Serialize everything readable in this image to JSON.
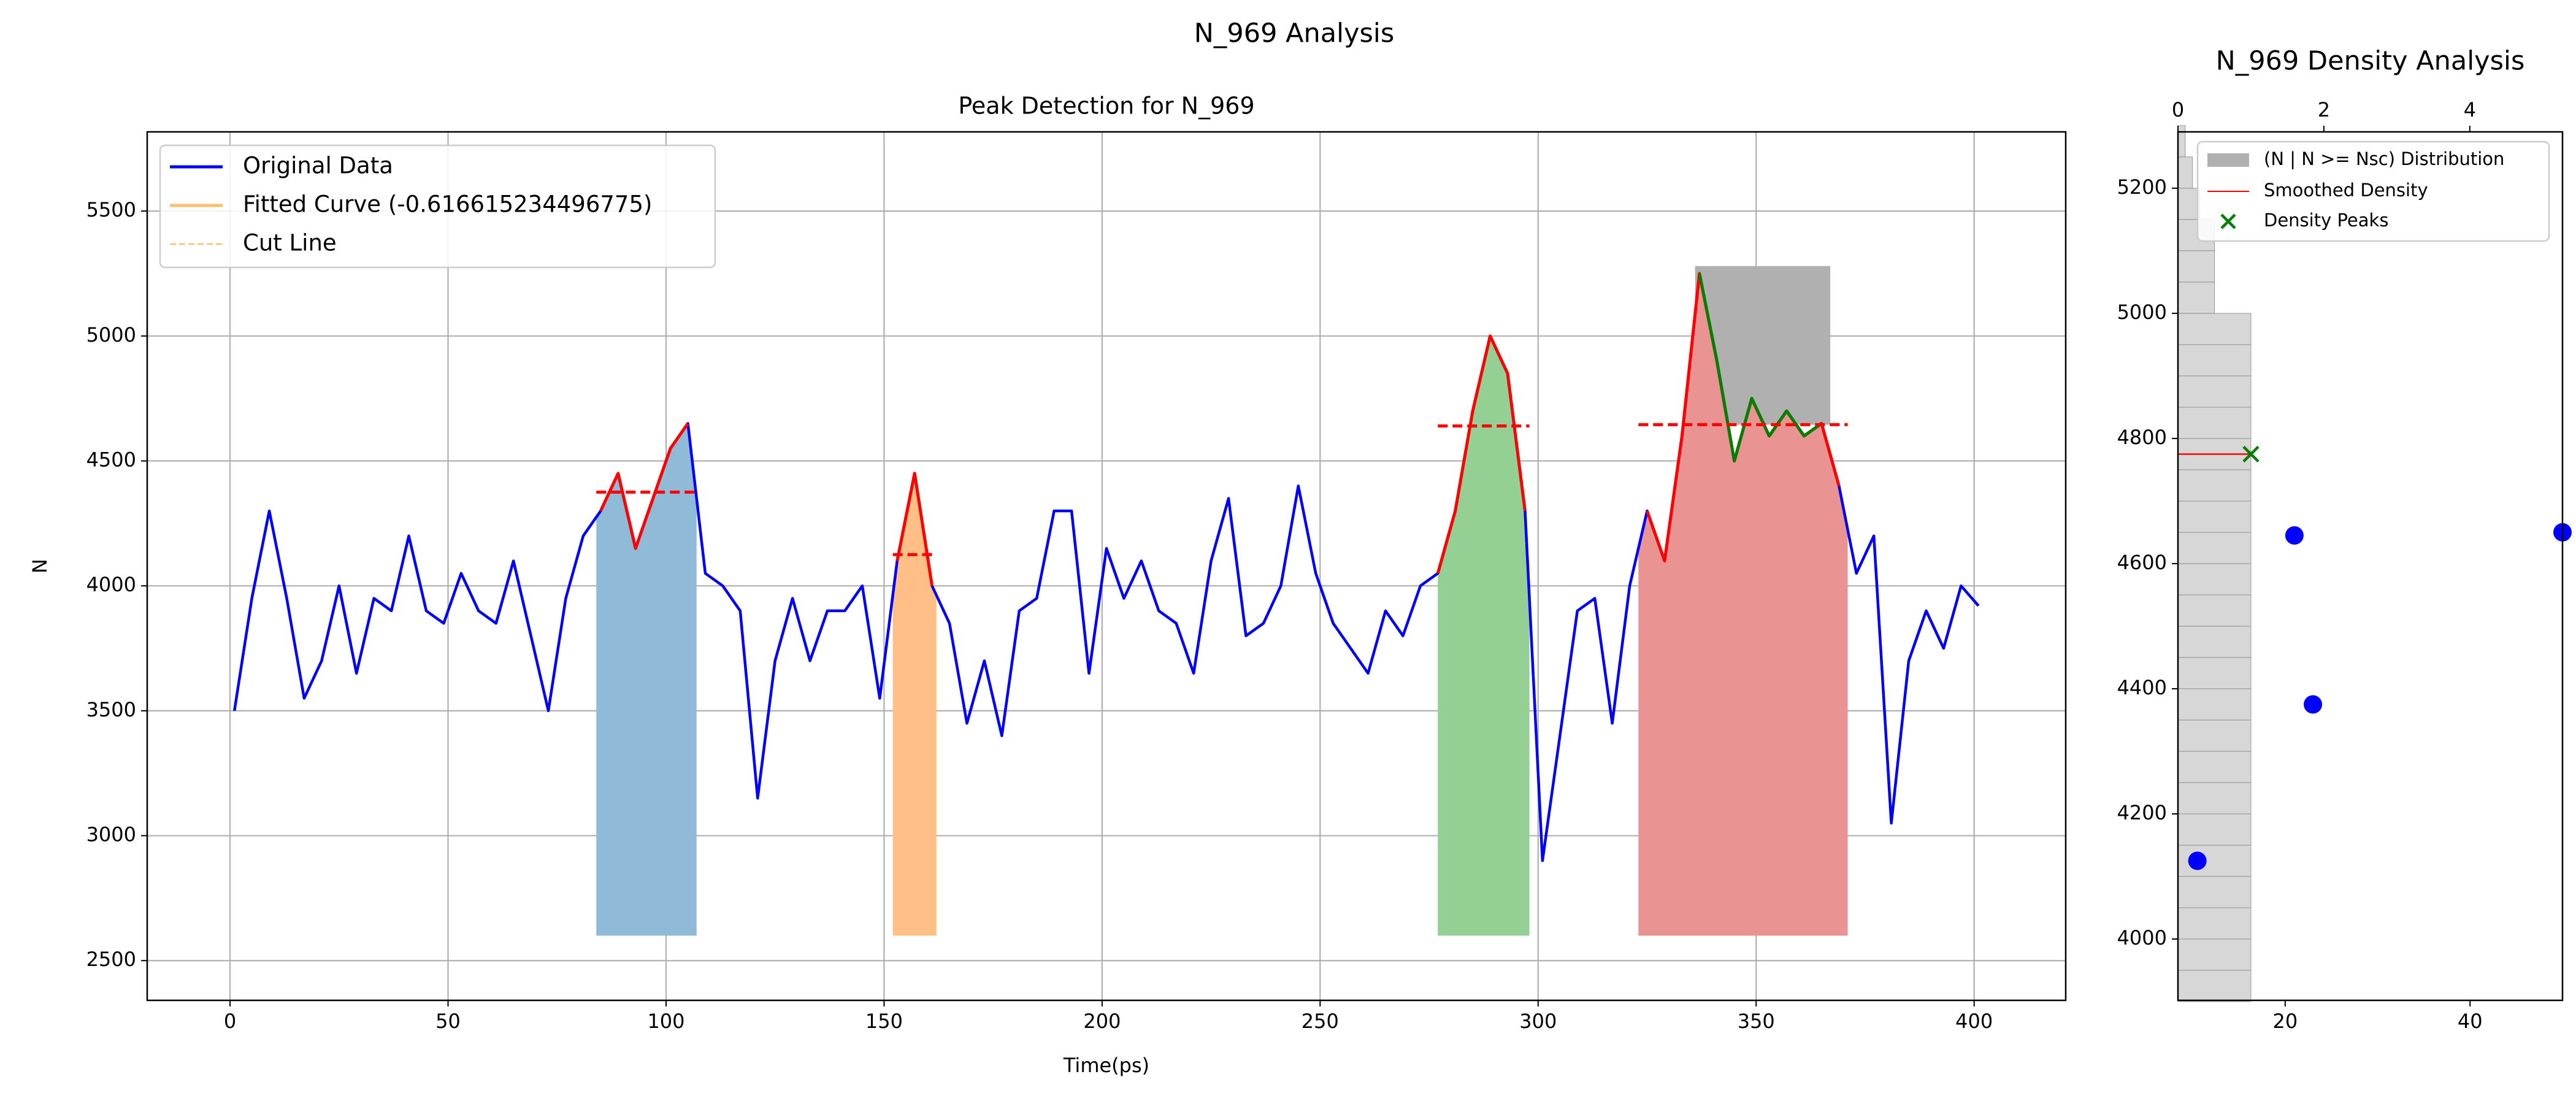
{
  "title": "N_969 Analysis",
  "chart_data": [
    {
      "type": "line",
      "title": "Peak Detection for N_969",
      "x_label": "Time(ps)",
      "y_label": "N",
      "xlim": [
        -19,
        421
      ],
      "xticks": [
        0,
        50,
        100,
        150,
        200,
        250,
        300,
        350,
        400
      ],
      "ylim": [
        2341,
        5817
      ],
      "yticks": [
        2500,
        3000,
        3500,
        4000,
        4500,
        5000,
        5500
      ],
      "grid": true,
      "legend": "upper left",
      "x": [
        1,
        5,
        9,
        13,
        17,
        21,
        25,
        29,
        33,
        37,
        41,
        45,
        49,
        53,
        57,
        61,
        65,
        69,
        73,
        77,
        81,
        85,
        89,
        93,
        97,
        101,
        105,
        109,
        113,
        117,
        121,
        125,
        129,
        133,
        137,
        141,
        145,
        149,
        153,
        157,
        161,
        165,
        169,
        173,
        177,
        181,
        185,
        189,
        193,
        197,
        201,
        205,
        209,
        213,
        217,
        221,
        225,
        229,
        233,
        237,
        241,
        245,
        249,
        253,
        257,
        261,
        265,
        269,
        273,
        277,
        281,
        285,
        289,
        293,
        297,
        301,
        305,
        309,
        313,
        317,
        321,
        325,
        329,
        333,
        337,
        341,
        345,
        349,
        353,
        357,
        361,
        365,
        369,
        373,
        377,
        381,
        385,
        389,
        393,
        397,
        401
      ],
      "series": [
        {
          "name": "Original Data",
          "color": "#0000ff",
          "values": [
            3500,
            3950,
            4300,
            3950,
            3550,
            3700,
            4000,
            3650,
            3950,
            3900,
            4200,
            3900,
            3850,
            4050,
            3900,
            3850,
            4100,
            3800,
            3500,
            3950,
            4200,
            4300,
            4450,
            4150,
            4350,
            4550,
            4650,
            4050,
            4000,
            3900,
            3150,
            3700,
            3950,
            3700,
            3900,
            3900,
            4000,
            3550,
            4100,
            4450,
            4000,
            3850,
            3450,
            3700,
            3400,
            3900,
            3950,
            4300,
            4300,
            3650,
            4150,
            3950,
            4100,
            3900,
            3850,
            3650,
            4100,
            4350,
            3800,
            3850,
            4000,
            4400,
            4050,
            3850,
            3750,
            3650,
            3900,
            3800,
            4000,
            4050,
            4300,
            4700,
            5000,
            4850,
            4300,
            2900,
            3400,
            3900,
            3950,
            3450,
            4000,
            4300,
            4100,
            4600,
            5250,
            4900,
            4500,
            4750,
            4600,
            4700,
            4600,
            4650,
            4400,
            4050,
            4200,
            3050,
            3700,
            3900,
            3750,
            4000,
            3920
          ]
        }
      ],
      "legend_items": [
        {
          "label": "Original Data",
          "color": "#0000ff",
          "dashed": false
        },
        {
          "label": "Fitted Curve (-0.616615234496775)",
          "color": "#ffbf66",
          "dashed": false
        },
        {
          "label": "Cut Line",
          "color": "#ffbf66",
          "dashed": true
        }
      ],
      "peak_line_color": "#ff0000",
      "fill_base": 2600,
      "peaks": [
        {
          "start": 84,
          "end": 107,
          "cut": 4375,
          "color": "#8fbbd9"
        },
        {
          "start": 152,
          "end": 162,
          "cut": 4125,
          "color": "#ffbf86"
        },
        {
          "start": 277,
          "end": 298,
          "cut": 4640,
          "color": "#94cf94"
        },
        {
          "start": 323,
          "end": 371,
          "cut": 4645,
          "color": "#ea9393"
        }
      ],
      "box": {
        "x": [
          336,
          367
        ],
        "y": [
          4645,
          5280
        ],
        "color": "#b0b0b0",
        "line_color": "#008000"
      }
    },
    {
      "type": "density",
      "title": "N_969 Density Analysis",
      "xlim": [
        8.4,
        50
      ],
      "xticks": [
        20,
        40
      ],
      "x2lim": [
        0,
        5.27
      ],
      "x2ticks": [
        0,
        2,
        4
      ],
      "ylim": [
        3902,
        5290
      ],
      "yticks": [
        4000,
        4200,
        4400,
        4600,
        4800,
        5000,
        5200
      ],
      "legend": "upper right",
      "histogram": {
        "name": "(N | N >= Nsc) Distribution",
        "color": "#b0b0b0",
        "axis": "x2",
        "bins": [
          3900,
          3950,
          4000,
          4050,
          4100,
          4150,
          4200,
          4250,
          4300,
          4350,
          4400,
          4450,
          4500,
          4550,
          4600,
          4650,
          4700,
          4750,
          4800,
          4850,
          4900,
          4950,
          5000,
          5050,
          5100,
          5150,
          5200,
          5250,
          5300
        ],
        "counts": [
          1,
          1,
          1,
          1,
          1,
          1,
          1,
          1,
          1,
          1,
          1,
          1,
          1,
          1,
          1,
          1,
          1,
          1,
          1,
          1,
          1,
          1,
          0.5,
          0.5,
          0.5,
          0.3,
          0.2,
          0.1
        ]
      },
      "smoothed": {
        "name": "Smoothed Density",
        "color": "#ff0000",
        "axis": "x2",
        "x": [
          0,
          1
        ],
        "y": [
          4775,
          4775
        ]
      },
      "density_peaks": {
        "name": "Density Peaks",
        "color": "#008000",
        "axis": "x2",
        "x": [
          1
        ],
        "y": [
          4775
        ]
      },
      "points": {
        "color": "#0000ff",
        "x": [
          10.5,
          21,
          23,
          50
        ],
        "y": [
          4125,
          4645,
          4375,
          4650
        ]
      }
    }
  ]
}
